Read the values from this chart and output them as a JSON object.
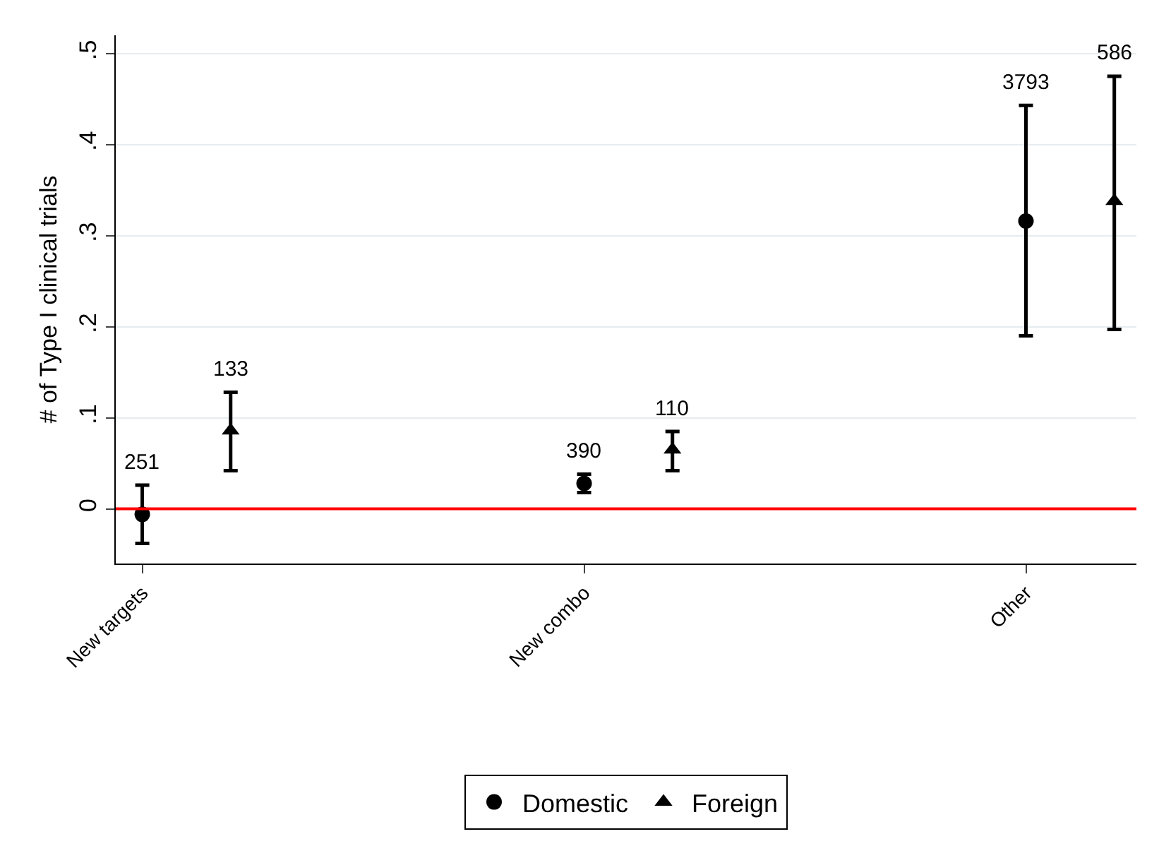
{
  "chart_data": {
    "type": "scatter",
    "ylabel": "# of Type I clinical trials",
    "categories": [
      "New targets",
      "New combo",
      "Other"
    ],
    "ylim": [
      -0.06,
      0.52
    ],
    "yticks": [
      0,
      {
        "value": 0.1,
        "label": ".1"
      },
      {
        "value": 0.2,
        "label": ".2"
      },
      {
        "value": 0.3,
        "label": ".3"
      },
      {
        "value": 0.4,
        "label": ".4"
      },
      {
        "value": 0.5,
        "label": ".5"
      }
    ],
    "grid": "y",
    "legend": "bottom",
    "ref_lines": [
      {
        "axis": "y",
        "value": 0,
        "color": "#ff0000"
      }
    ],
    "series": [
      {
        "name": "Domestic",
        "color": "#000000",
        "marker": "circle",
        "values": [
          -0.006,
          0.028,
          0.316
        ],
        "errors": [
          [
            -0.038,
            0.026
          ],
          [
            0.018,
            0.038
          ],
          [
            0.19,
            0.443
          ]
        ]
      },
      {
        "name": "Foreign",
        "color": "#000000",
        "marker": "triangle",
        "values": [
          0.086,
          0.065,
          0.338
        ],
        "errors": [
          [
            0.042,
            0.128
          ],
          [
            0.042,
            0.085
          ],
          [
            0.197,
            0.475
          ]
        ]
      }
    ],
    "annotations": [
      "251",
      "390",
      "3793",
      "133",
      "110",
      "586"
    ]
  }
}
